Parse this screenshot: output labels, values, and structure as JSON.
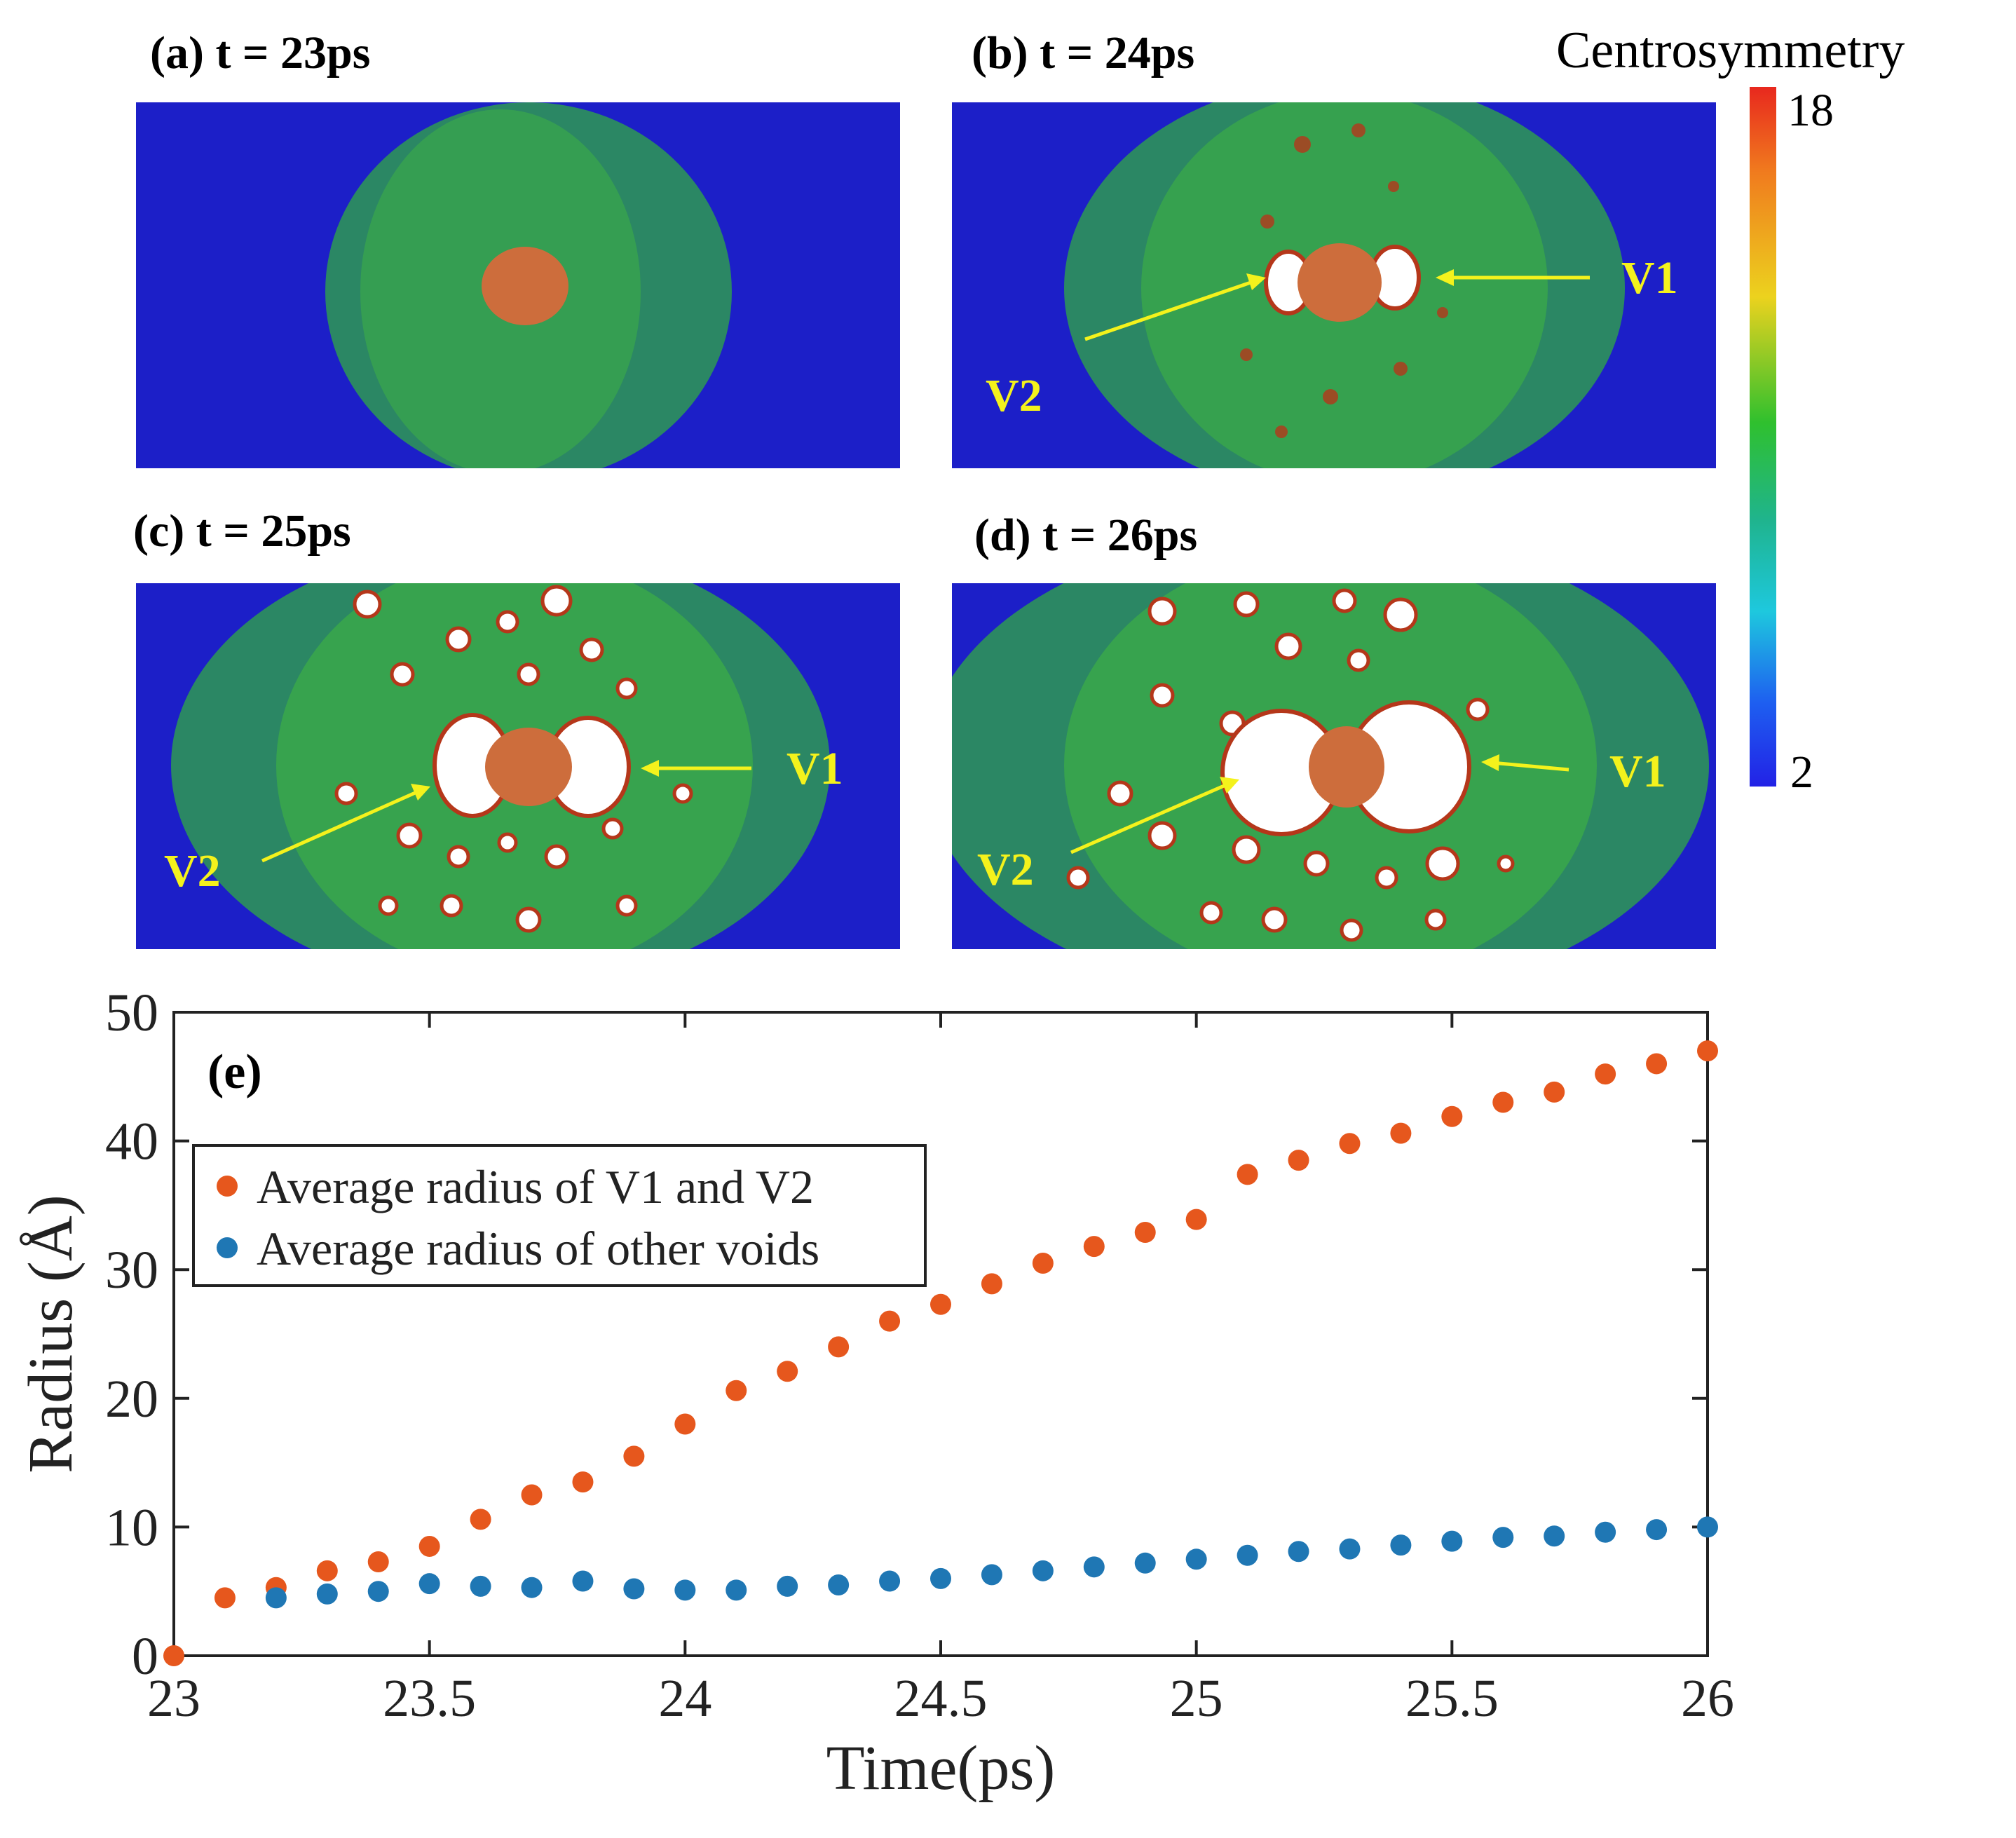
{
  "panels": {
    "a": {
      "label": "(a) t = 23ps"
    },
    "b": {
      "label": "(b) t = 24ps",
      "v1": "V1",
      "v2": "V2"
    },
    "c": {
      "label": "(c) t = 25ps",
      "v1": "V1",
      "v2": "V2"
    },
    "d": {
      "label": "(d) t = 26ps",
      "v1": "V1",
      "v2": "V2"
    }
  },
  "colorbar": {
    "title": "Centrosymmetry",
    "max_label": "18",
    "min_label": "2",
    "stops": [
      "#e8281e",
      "#f07a1e",
      "#ecd21e",
      "#2fc02e",
      "#1fb48e",
      "#1ec8de",
      "#1e5ff0",
      "#2222e6"
    ]
  },
  "colors": {
    "substrate": "#1c1fc8",
    "shear_band": "#2e9a52",
    "particle": "#cd6d3c",
    "void": "#ffffff",
    "void_rim": "#b5371a",
    "annotation": "#f4f21c",
    "series_v1v2": "#e6571d",
    "series_other": "#1f77b4"
  },
  "chart_data": {
    "type": "scatter",
    "panel_label": "(e)",
    "xlabel": "Time(ps)",
    "ylabel": "Radius (Å)",
    "xlim": [
      23,
      26
    ],
    "ylim": [
      0,
      50
    ],
    "xticks": [
      "23",
      "23.5",
      "24",
      "24.5",
      "25",
      "25.5",
      "26"
    ],
    "yticks": [
      "0",
      "10",
      "20",
      "30",
      "40",
      "50"
    ],
    "legend_position": "upper-left",
    "series": [
      {
        "name": "Average radius of V1 and V2",
        "x": [
          23.0,
          23.1,
          23.2,
          23.3,
          23.4,
          23.5,
          23.6,
          23.7,
          23.8,
          23.9,
          24.0,
          24.1,
          24.2,
          24.3,
          24.4,
          24.5,
          24.6,
          24.7,
          24.8,
          24.9,
          25.0,
          25.1,
          25.2,
          25.3,
          25.4,
          25.5,
          25.6,
          25.7,
          25.8,
          25.9,
          26.0
        ],
        "y": [
          0.0,
          4.5,
          5.3,
          6.6,
          7.3,
          8.5,
          10.6,
          12.5,
          13.5,
          15.5,
          18.0,
          20.6,
          22.1,
          24.0,
          26.0,
          27.3,
          28.9,
          30.5,
          31.8,
          32.9,
          33.9,
          37.4,
          38.5,
          39.8,
          40.6,
          41.9,
          43.0,
          43.8,
          45.2,
          46.0,
          47.0
        ]
      },
      {
        "name": "Average radius of other voids",
        "x": [
          23.2,
          23.3,
          23.4,
          23.5,
          23.6,
          23.7,
          23.8,
          23.9,
          24.0,
          24.1,
          24.2,
          24.3,
          24.4,
          24.5,
          24.6,
          24.7,
          24.8,
          24.9,
          25.0,
          25.1,
          25.2,
          25.3,
          25.4,
          25.5,
          25.6,
          25.7,
          25.8,
          25.9,
          26.0
        ],
        "y": [
          4.5,
          4.8,
          5.0,
          5.6,
          5.4,
          5.3,
          5.8,
          5.2,
          5.1,
          5.1,
          5.4,
          5.5,
          5.8,
          6.0,
          6.3,
          6.6,
          6.9,
          7.2,
          7.5,
          7.8,
          8.1,
          8.3,
          8.6,
          8.9,
          9.2,
          9.3,
          9.6,
          9.8,
          10.0
        ]
      }
    ]
  }
}
